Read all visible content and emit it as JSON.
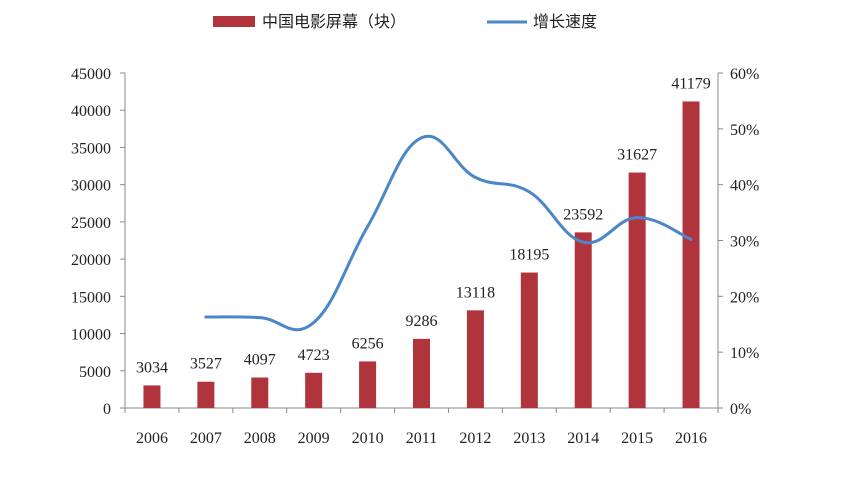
{
  "chart_data": {
    "type": "bar",
    "categories": [
      "2006",
      "2007",
      "2008",
      "2009",
      "2010",
      "2011",
      "2012",
      "2013",
      "2014",
      "2015",
      "2016"
    ],
    "series": [
      {
        "name": "中国电影屏幕（块）",
        "type": "bar",
        "axis": "left",
        "color": "#B0343B",
        "values": [
          3034,
          3527,
          4097,
          4723,
          6256,
          9286,
          13118,
          18195,
          23592,
          31627,
          41179
        ],
        "labels": [
          "3034",
          "3527",
          "4097",
          "4723",
          "6256",
          "9286",
          "13118",
          "18195",
          "23592",
          "31627",
          "41179"
        ]
      },
      {
        "name": "增长速度",
        "type": "line",
        "axis": "right",
        "color": "#4A86C8",
        "values": [
          null,
          16.3,
          16.2,
          15.3,
          32.5,
          48.4,
          41.3,
          38.7,
          29.7,
          34.1,
          30.2
        ]
      }
    ],
    "y_left": {
      "ylim": [
        0,
        45000
      ],
      "ticks": [
        "0",
        "5000",
        "10000",
        "15000",
        "20000",
        "25000",
        "30000",
        "35000",
        "40000",
        "45000"
      ]
    },
    "y_right": {
      "ylim": [
        0,
        60
      ],
      "ticks": [
        "0%",
        "10%",
        "20%",
        "30%",
        "40%",
        "50%",
        "60%"
      ]
    },
    "legend": "top",
    "grid": false
  }
}
